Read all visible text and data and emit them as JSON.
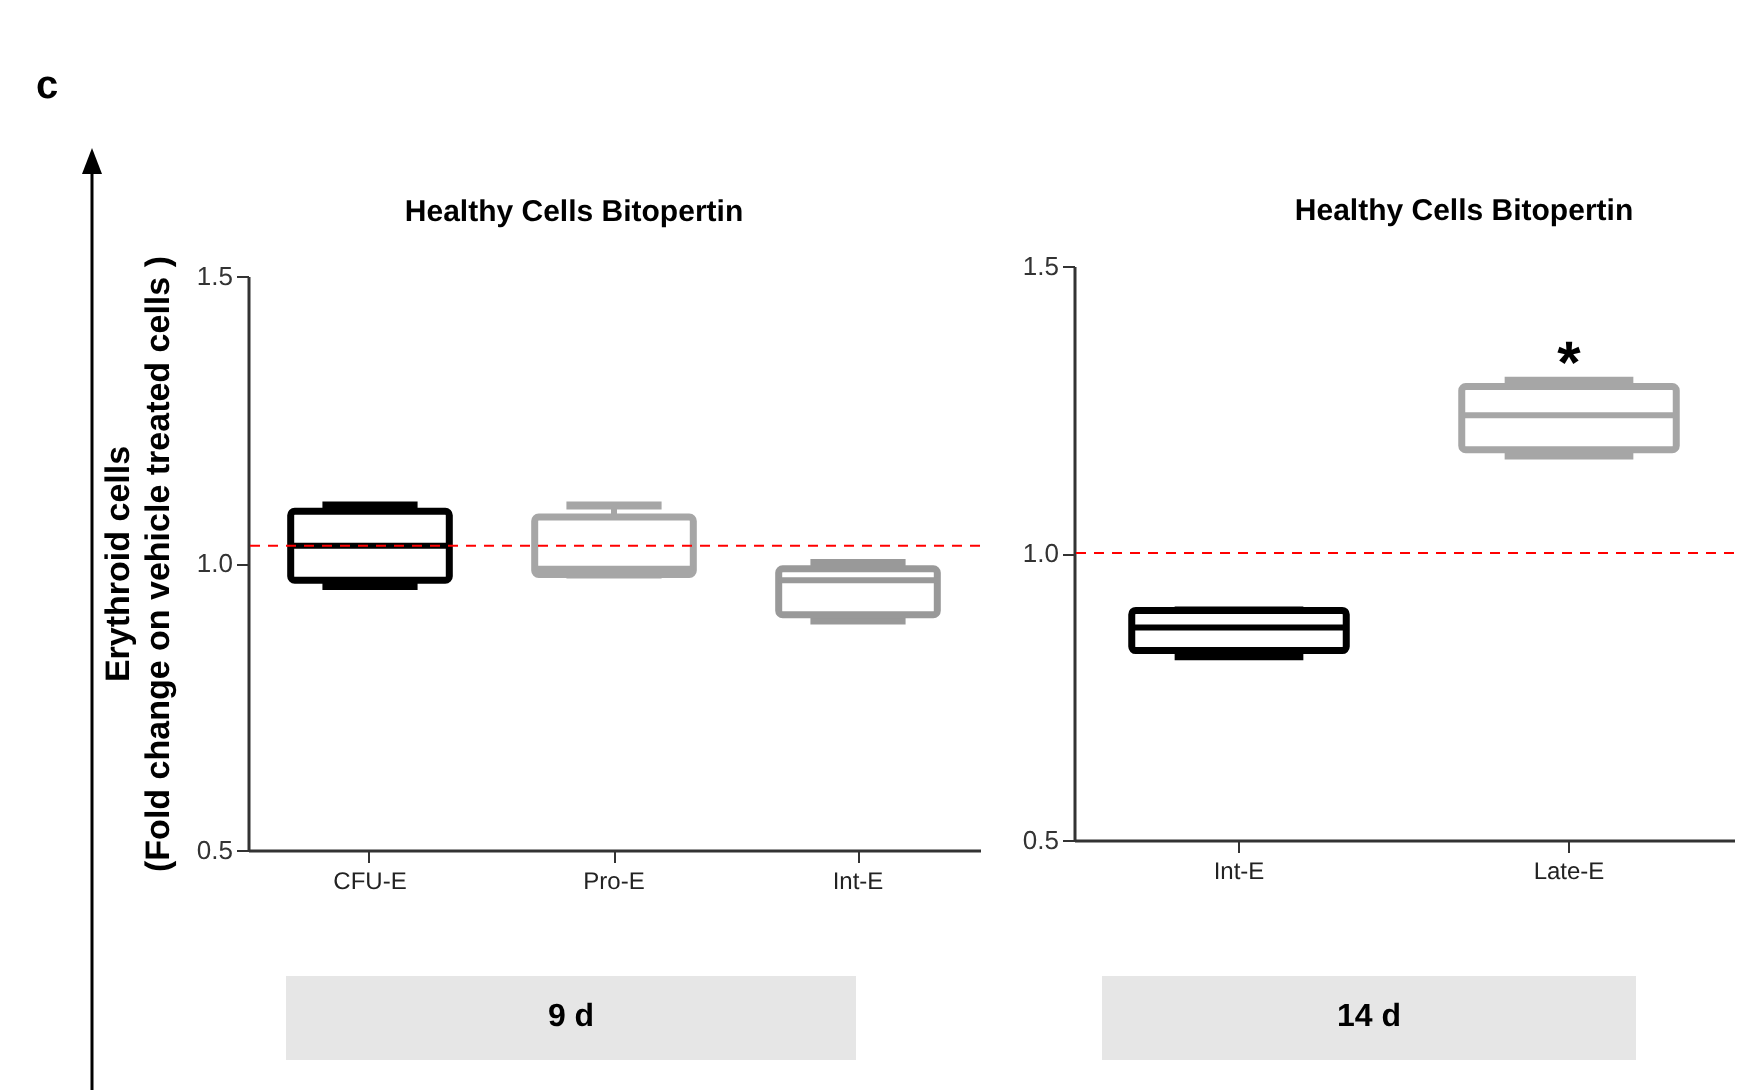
{
  "chart_data": [
    {
      "type": "box",
      "title": "Healthy Cells Bitopertin",
      "ylabel": "Erythroid cells\n(Fold change on vehicle treated cells )",
      "xlabel": "9 d",
      "categories": [
        "CFU-E",
        "Pro-E",
        "Int-E"
      ],
      "colors": [
        "#000000",
        "#a6a6a6",
        "#999999"
      ],
      "boxes": [
        {
          "low": 0.96,
          "q1": 0.97,
          "median": 1.03,
          "q3": 1.09,
          "high": 1.1
        },
        {
          "low": 0.98,
          "q1": 0.98,
          "median": 0.99,
          "q3": 1.08,
          "high": 1.1
        },
        {
          "low": 0.9,
          "q1": 0.91,
          "median": 0.97,
          "q3": 0.99,
          "high": 1.0
        }
      ],
      "ylim": [
        0.5,
        1.5
      ],
      "yticks": [
        {
          "value": 0.5,
          "label": "0.5"
        },
        {
          "value": 1.0,
          "label": "1.0"
        },
        {
          "value": 1.5,
          "label": "1.5"
        }
      ],
      "ref_lines": [
        {
          "axis": "y",
          "value": 1.03,
          "color": "#ff0000",
          "line_style": "dashed"
        }
      ],
      "annotations": [
        "c"
      ]
    },
    {
      "type": "box",
      "title": "Healthy Cells Bitopertin",
      "xlabel": "14 d",
      "categories": [
        "Int-E",
        "Late-E"
      ],
      "colors": [
        "#000000",
        "#a6a6a6"
      ],
      "boxes": [
        {
          "low": 0.82,
          "q1": 0.83,
          "median": 0.87,
          "q3": 0.9,
          "high": 0.9
        },
        {
          "low": 1.17,
          "q1": 1.18,
          "median": 1.24,
          "q3": 1.29,
          "high": 1.3
        }
      ],
      "ylim": [
        0.5,
        1.5
      ],
      "yticks": [
        {
          "value": 0.5,
          "label": "0.5"
        },
        {
          "value": 1.0,
          "label": "1.0"
        },
        {
          "value": 1.5,
          "label": "1.5"
        }
      ],
      "ref_lines": [
        {
          "axis": "y",
          "value": 1.0,
          "color": "#ff0000",
          "line_style": "dashed"
        }
      ],
      "annotations": [
        {
          "text": "*",
          "x": "Late-E",
          "y": 1.3
        }
      ]
    }
  ]
}
